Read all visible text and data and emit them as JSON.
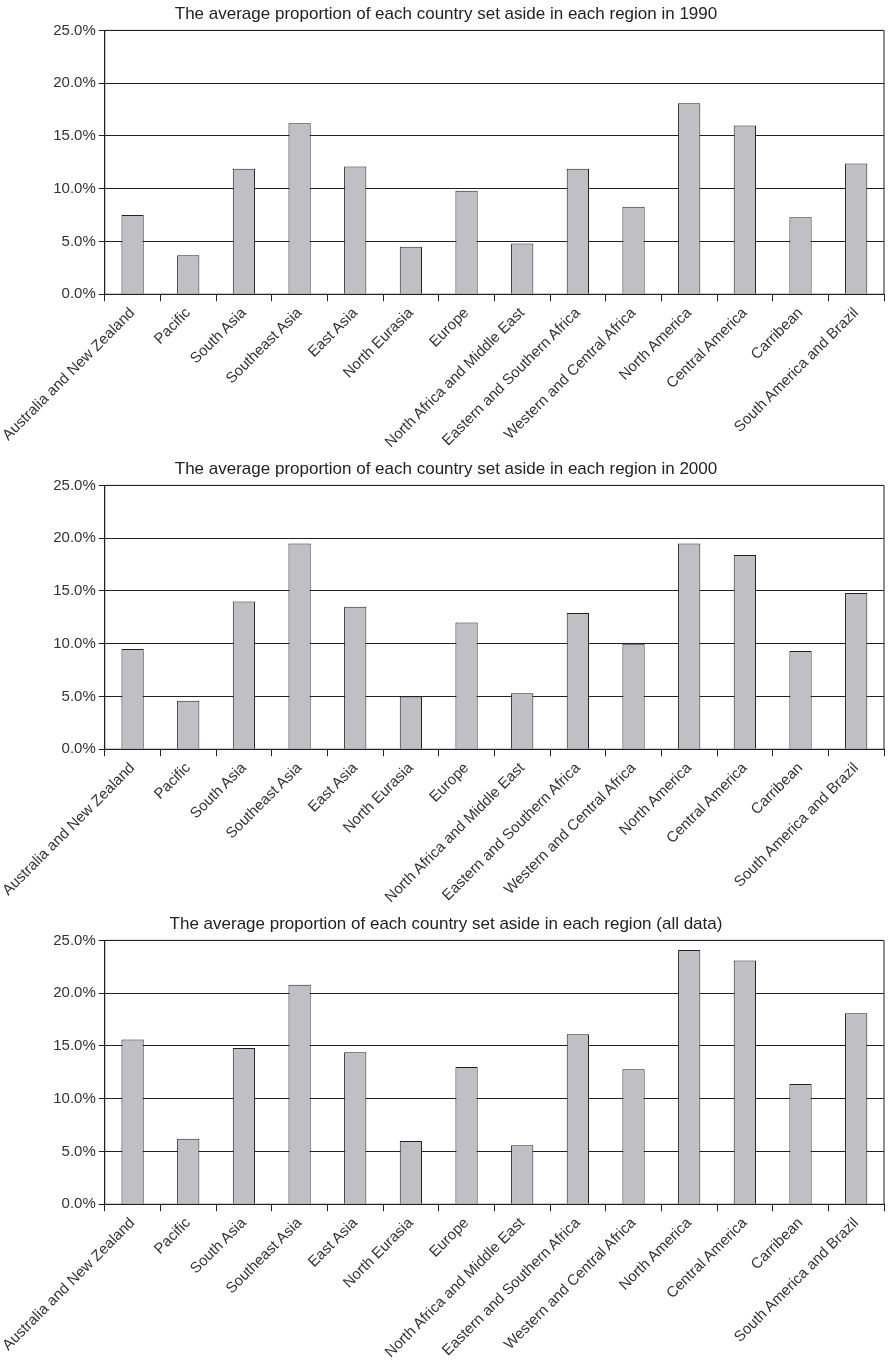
{
  "chart_data": [
    {
      "type": "bar",
      "title": "The average proportion of each country set aside in each region in 1990",
      "categories": [
        "Australia and New Zealand",
        "Pacific",
        "South Asia",
        "Southeast Asia",
        "East Asia",
        "North Eurasia",
        "Europe",
        "North Africa and Middle East",
        "Eastern and Southern Africa",
        "Western and Central Africa",
        "North America",
        "Central America",
        "Carribean",
        "South America and Brazil"
      ],
      "values": [
        7.5,
        3.7,
        11.9,
        16.2,
        12.1,
        4.5,
        9.8,
        4.8,
        11.9,
        8.3,
        18.1,
        16.0,
        7.3,
        12.4
      ],
      "color": "#c0c0c4",
      "ylim": [
        0,
        25
      ],
      "yticks": [
        {
          "value": 0,
          "label": "0.0%"
        },
        {
          "value": 5,
          "label": "5.0%"
        },
        {
          "value": 10,
          "label": "10.0%"
        },
        {
          "value": 15,
          "label": "15.0%"
        },
        {
          "value": 20,
          "label": "20.0%"
        },
        {
          "value": 25,
          "label": "25.0%"
        }
      ],
      "grid": "y"
    },
    {
      "type": "bar",
      "title": "The average proportion of each country set aside in each region in 2000",
      "categories": [
        "Australia and New Zealand",
        "Pacific",
        "South Asia",
        "Southeast Asia",
        "East Asia",
        "North Eurasia",
        "Europe",
        "North Africa and Middle East",
        "Eastern and Southern Africa",
        "Western and Central Africa",
        "North America",
        "Central America",
        "Carribean",
        "South America and Brazil"
      ],
      "values": [
        9.5,
        4.6,
        14.0,
        19.5,
        13.5,
        5.0,
        12.0,
        5.3,
        12.9,
        10.0,
        19.5,
        18.4,
        9.3,
        14.8
      ],
      "color": "#c0c0c4",
      "ylim": [
        0,
        25
      ],
      "yticks": [
        {
          "value": 0,
          "label": "0.0%"
        },
        {
          "value": 5,
          "label": "5.0%"
        },
        {
          "value": 10,
          "label": "10.0%"
        },
        {
          "value": 15,
          "label": "15.0%"
        },
        {
          "value": 20,
          "label": "20.0%"
        },
        {
          "value": 25,
          "label": "25.0%"
        }
      ],
      "grid": "y"
    },
    {
      "type": "bar",
      "title": "The average proportion of each country set aside in each region (all data)",
      "categories": [
        "Australia and New Zealand",
        "Pacific",
        "South Asia",
        "Southeast Asia",
        "East Asia",
        "North Eurasia",
        "Europe",
        "North Africa and Middle East",
        "Eastern and Southern Africa",
        "Western and Central Africa",
        "North America",
        "Central America",
        "Carribean",
        "South America and Brazil"
      ],
      "values": [
        15.6,
        6.2,
        14.8,
        20.8,
        14.4,
        6.0,
        13.0,
        5.6,
        16.1,
        12.8,
        24.1,
        23.1,
        11.4,
        18.1
      ],
      "color": "#c0c0c4",
      "ylim": [
        0,
        25
      ],
      "yticks": [
        {
          "value": 0,
          "label": "0.0%"
        },
        {
          "value": 5,
          "label": "5.0%"
        },
        {
          "value": 10,
          "label": "10.0%"
        },
        {
          "value": 15,
          "label": "15.0%"
        },
        {
          "value": 20,
          "label": "20.0%"
        },
        {
          "value": 25,
          "label": "25.0%"
        }
      ],
      "grid": "y"
    }
  ]
}
